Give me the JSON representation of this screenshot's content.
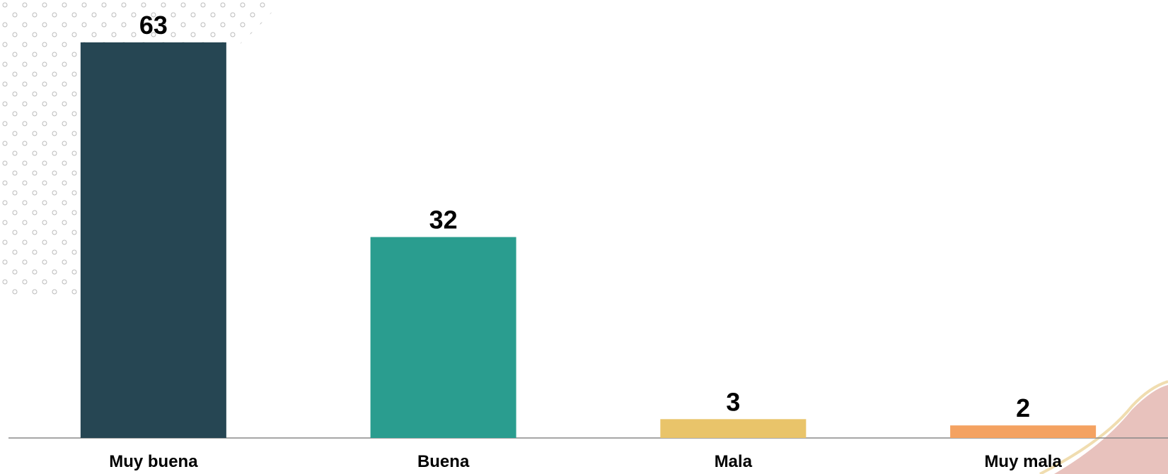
{
  "chart_data": {
    "type": "bar",
    "categories": [
      "Muy buena",
      "Buena",
      "Mala",
      "Muy mala"
    ],
    "values": [
      63,
      32,
      3,
      2
    ],
    "colors": [
      "#264653",
      "#2a9d8f",
      "#e9c46a",
      "#f4a261"
    ]
  }
}
